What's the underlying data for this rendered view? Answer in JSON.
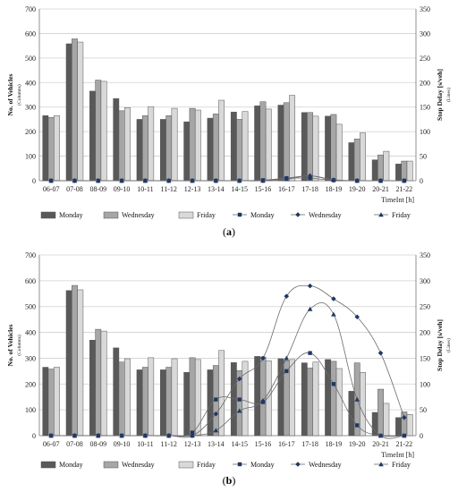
{
  "chart_data": [
    {
      "type": "bar",
      "panel_label": "(a)",
      "categories": [
        "06-07",
        "07-08",
        "08-09",
        "09-10",
        "10-11",
        "11-12",
        "12-13",
        "13-14",
        "14-15",
        "15-16",
        "16-17",
        "17-18",
        "18-19",
        "19-20",
        "20-21",
        "21-22"
      ],
      "xlabel": "TimeInt [h]",
      "ylabel": "No. of Vehicles",
      "ylabel_sub": "(Columns)",
      "y2label": "Stop Delay [s/veh]",
      "y2label_sub": "(Lines)",
      "ylim": [
        0,
        700
      ],
      "y2lim": [
        0,
        350
      ],
      "yticks": [
        0,
        100,
        200,
        300,
        400,
        500,
        600,
        700
      ],
      "y2ticks": [
        0,
        50,
        100,
        150,
        200,
        250,
        300,
        350
      ],
      "grid": true,
      "legend_position": "bottom",
      "series": [
        {
          "name": "Monday",
          "kind": "bar",
          "color": "#595959",
          "values": [
            265,
            558,
            365,
            335,
            250,
            250,
            240,
            255,
            280,
            305,
            308,
            278,
            263,
            155,
            85,
            68
          ]
        },
        {
          "name": "Wednesday",
          "kind": "bar",
          "color": "#a6a6a6",
          "values": [
            258,
            578,
            410,
            285,
            265,
            265,
            295,
            272,
            250,
            322,
            318,
            278,
            270,
            170,
            105,
            80
          ]
        },
        {
          "name": "Friday",
          "kind": "bar",
          "color": "#d9d9d9",
          "values": [
            265,
            565,
            405,
            298,
            302,
            295,
            288,
            328,
            282,
            292,
            348,
            263,
            230,
            195,
            120,
            80
          ]
        },
        {
          "name": "Monday",
          "kind": "line",
          "axis": "right",
          "color": "#1f3864",
          "marker": "square",
          "values": [
            0,
            0,
            0,
            0,
            0,
            0,
            0,
            0,
            0,
            1,
            5,
            5,
            1,
            0,
            0,
            0
          ]
        },
        {
          "name": "Wednesday",
          "kind": "line",
          "axis": "right",
          "color": "#1f3864",
          "marker": "diamond",
          "values": [
            0,
            0,
            0,
            0,
            0,
            0,
            0,
            0,
            0,
            0,
            5,
            10,
            1,
            0,
            0,
            0
          ]
        },
        {
          "name": "Friday",
          "kind": "line",
          "axis": "right",
          "color": "#1f3864",
          "marker": "triangle",
          "values": [
            0,
            0,
            0,
            0,
            0,
            0,
            0,
            0,
            0,
            0,
            3,
            10,
            2,
            0,
            0,
            0
          ]
        }
      ]
    },
    {
      "type": "bar",
      "panel_label": "(b)",
      "categories": [
        "06-07",
        "07-08",
        "08-09",
        "09-10",
        "10-11",
        "11-12",
        "12-13",
        "13-14",
        "14-15",
        "15-16",
        "16-17",
        "17-18",
        "18-19",
        "19-20",
        "20-21",
        "21-22"
      ],
      "xlabel": "TimeInt [h]",
      "ylabel": "No. of Vehicles",
      "ylabel_sub": "(Columns)",
      "y2label": "Stop Delay [s/veh]",
      "y2label_sub": "(Lines)",
      "ylim": [
        0,
        700
      ],
      "y2lim": [
        0,
        350
      ],
      "yticks": [
        0,
        100,
        200,
        300,
        400,
        500,
        600,
        700
      ],
      "y2ticks": [
        0,
        50,
        100,
        150,
        200,
        250,
        300,
        350
      ],
      "grid": true,
      "legend_position": "bottom",
      "series": [
        {
          "name": "Monday",
          "kind": "bar",
          "color": "#595959",
          "values": [
            265,
            562,
            370,
            340,
            255,
            255,
            245,
            255,
            283,
            307,
            298,
            282,
            295,
            172,
            90,
            70
          ]
        },
        {
          "name": "Wednesday",
          "kind": "bar",
          "color": "#a6a6a6",
          "values": [
            258,
            582,
            412,
            285,
            265,
            265,
            302,
            272,
            252,
            305,
            290,
            262,
            288,
            282,
            180,
            92
          ]
        },
        {
          "name": "Friday",
          "kind": "bar",
          "color": "#d9d9d9",
          "values": [
            265,
            565,
            405,
            298,
            302,
            298,
            295,
            330,
            288,
            290,
            295,
            285,
            260,
            245,
            125,
            82
          ]
        },
        {
          "name": "Monday",
          "kind": "line",
          "axis": "right",
          "color": "#1f3864",
          "marker": "square",
          "values": [
            0,
            0,
            0,
            0,
            0,
            0,
            6,
            70,
            70,
            65,
            125,
            160,
            100,
            20,
            0,
            0
          ]
        },
        {
          "name": "Wednesday",
          "kind": "line",
          "axis": "right",
          "color": "#1f3864",
          "marker": "diamond",
          "values": [
            0,
            0,
            0,
            0,
            0,
            0,
            0,
            42,
            110,
            150,
            270,
            290,
            265,
            230,
            160,
            35
          ]
        },
        {
          "name": "Friday",
          "kind": "line",
          "axis": "right",
          "color": "#1f3864",
          "marker": "triangle",
          "values": [
            0,
            0,
            0,
            0,
            0,
            0,
            0,
            10,
            48,
            68,
            150,
            245,
            235,
            70,
            0,
            0
          ]
        }
      ]
    }
  ]
}
